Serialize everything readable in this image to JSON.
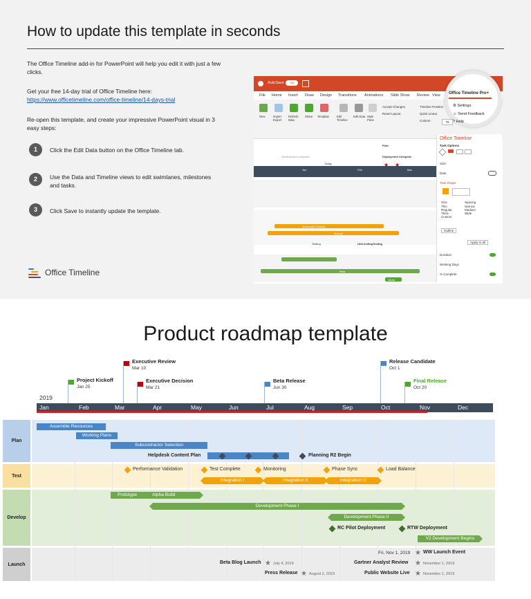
{
  "slide1": {
    "title": "How to update this template in seconds",
    "intro": "The Office Timeline add-in for PowerPoint will help you edit it with just a few clicks.",
    "trial_prefix": "Get your ",
    "trial_free": "free",
    "trial_suffix": " 14-day trial of Office Timeline here:",
    "trial_link": "https://www.officetimeline.com/office-timeline/14-days-trial",
    "reopen": "Re-open this template, and create your impressive PowerPoint visual in 3 easy steps:",
    "steps": [
      {
        "num": "1",
        "text": "Click the Edit Data button on the Office Timeline tab."
      },
      {
        "num": "2",
        "text": "Use the Data and Timeline views to edit swimlanes, milestones and tasks."
      },
      {
        "num": "3",
        "text": "Click Save to instantly update the template."
      }
    ],
    "logo": "Office Timeline",
    "app": {
      "autosave": "AutoSave",
      "toggle": "Off",
      "tabs": [
        "File",
        "Home",
        "Insert",
        "Draw",
        "Design",
        "Transitions",
        "Animations",
        "Slide Show",
        "Review",
        "View"
      ],
      "magnified_tab": "Office Timeline Pro+",
      "buttons": [
        "New",
        "Import Export",
        "Refresh Data",
        "Share",
        "Template",
        "Edit Timeline",
        "Edit Data",
        "Style Pane",
        "Accept Changes",
        "Reset Layout",
        "Timeline Position",
        "Quick Linear",
        "Custom",
        "Settings",
        "Send Feedback",
        "Help"
      ],
      "zoom": "75",
      "panel_title": "Office Timeline",
      "panel_items": [
        "Task Options",
        "Size",
        "Date",
        "Task Shape",
        "Size",
        "Spacing",
        "Thin",
        "Regular",
        "Thick",
        "Custom",
        "Narrow",
        "Medium",
        "Wide",
        "Outline",
        "Apply to all",
        "Duration",
        "Working Days",
        "% Complete"
      ],
      "canvas_labels": [
        "Development complete",
        "Pilot",
        "Deployment Complete",
        "Today",
        "Jan",
        "Feb",
        "Mar",
        "Automated Testing",
        "Manual",
        "Testing",
        "Unit testing",
        "Testing",
        "Beta",
        "Alpha"
      ]
    }
  },
  "slide2": {
    "title": "Product roadmap template",
    "year": "2019",
    "months": [
      "Jan",
      "Feb",
      "Mar",
      "Apr",
      "May",
      "Jun",
      "Jul",
      "Aug",
      "Sep",
      "Oct",
      "Nov",
      "Dec"
    ],
    "milestones": [
      {
        "name": "Executive Review",
        "date": "Mar 10",
        "color": "#c00000"
      },
      {
        "name": "Project Kickoff",
        "date": "Jan 25",
        "color": "#4ea72e"
      },
      {
        "name": "Executive Decision",
        "date": "Mar 21",
        "color": "#c00000"
      },
      {
        "name": "Beta Release",
        "date": "Jun 30",
        "color": "#4a86c5"
      },
      {
        "name": "Release Candidate",
        "date": "Oct 1",
        "color": "#4a86c5"
      },
      {
        "name": "Final Release",
        "date": "Oct 20",
        "color": "#4ea72e"
      }
    ],
    "lanes": [
      "Plan",
      "Test",
      "Develop",
      "Launch"
    ],
    "plan_tasks": [
      "Assemble Resources",
      "Working Plans",
      "Subcontractor Selection",
      "Helpdesk Content Plan",
      "Planning R2 Begin"
    ],
    "test_items": [
      "Performance Validation",
      "Test Complete",
      "Monitoring",
      "Phase Sync",
      "Load Balance",
      "Integration I",
      "Integration II",
      "Integration III"
    ],
    "develop_items": [
      "Prototype",
      "Alpha Build",
      "Development Phase I",
      "Development Phase II",
      "RC Pilot Deployment",
      "RTW Deployment",
      "V2 Development Begins"
    ],
    "launch_items": [
      {
        "name": "WW Launch Event",
        "date": "Fri, Nov 1, 2019"
      },
      {
        "name": "Beta Blog Launch",
        "date": "July 4, 2019"
      },
      {
        "name": "Gartner Analyst Review",
        "date": "November 1, 2019"
      },
      {
        "name": "Press Release",
        "date": "August 2, 2019"
      },
      {
        "name": "Public Website Live",
        "date": "November 1, 2019"
      }
    ],
    "colors": {
      "plan": "#4a86c5",
      "test": "#f0a30a",
      "develop": "#70a84e",
      "launch": "#7a7a7a",
      "dark_diamond": "#3d4b5c",
      "red": "#d71920"
    }
  }
}
